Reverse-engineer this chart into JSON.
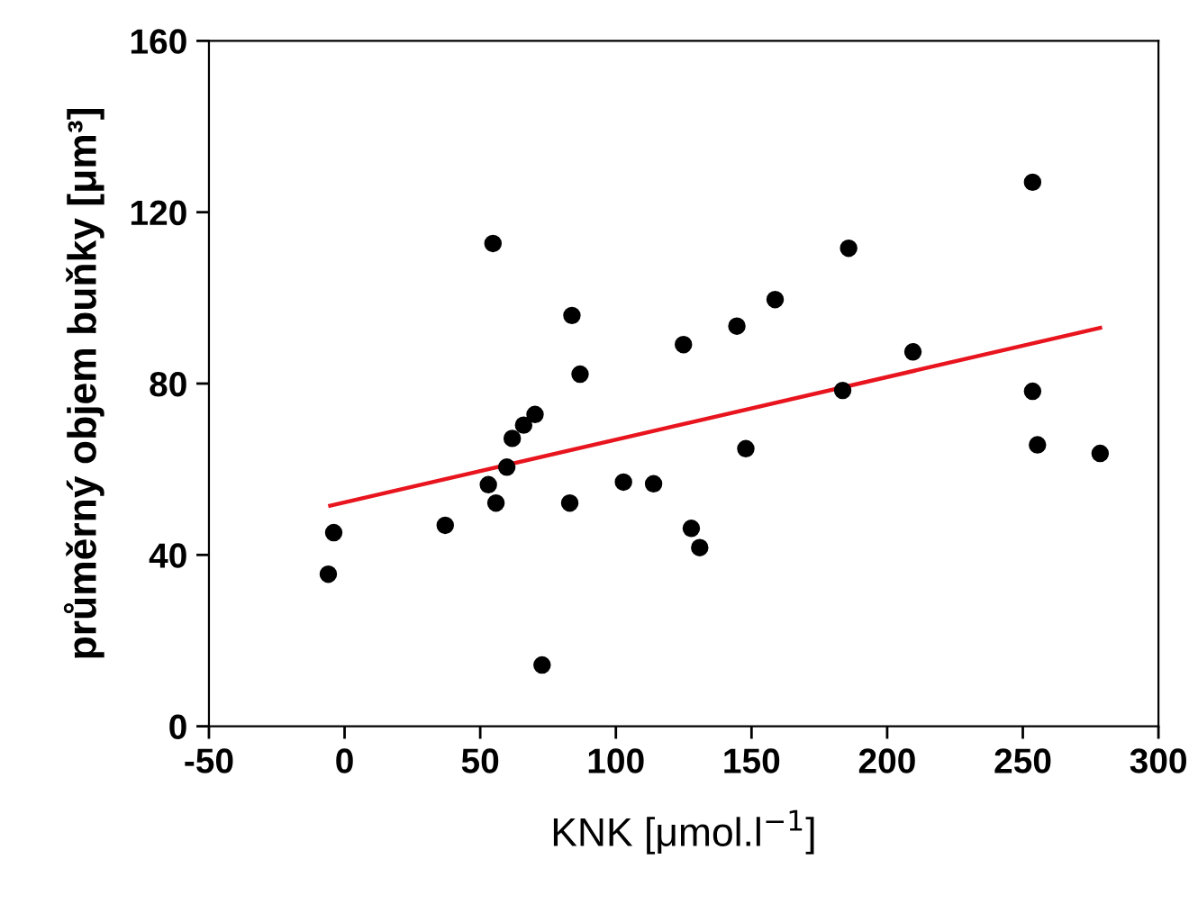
{
  "chart_data": {
    "type": "scatter",
    "xlabel": "KNK [μmol.l$^{−1}$]",
    "ylabel": "průměrný objem buňky [μm³]",
    "xlim": [
      -50,
      300
    ],
    "xticks": [
      -50,
      0,
      50,
      100,
      150,
      200,
      250,
      300
    ],
    "ylim": [
      0,
      160
    ],
    "yticks": [
      0,
      40,
      80,
      120,
      160
    ],
    "grid": false,
    "legend": false,
    "series": [
      {
        "color": "#000000",
        "marker": "circle",
        "x": [
          54.7,
          83.8,
          86.8,
          70.2,
          66,
          61.8,
          59.8,
          53,
          55.8,
          83,
          102.8,
          113.9,
          37.1,
          -4,
          -6,
          72.8,
          124.9,
          144.6,
          158.7,
          185.8,
          147.9,
          127.8,
          130.9,
          183.6,
          209.5,
          253.6,
          253.6,
          255.4,
          278.5
        ],
        "values": [
          112.7,
          95.9,
          82.2,
          72.8,
          70.3,
          67.2,
          60.5,
          56.4,
          52.1,
          52.1,
          57,
          56.6,
          46.9,
          45.2,
          35.5,
          14.3,
          89.1,
          93.4,
          99.6,
          111.6,
          64.8,
          46.2,
          41.7,
          78.4,
          87.4,
          127,
          78.2,
          65.7,
          63.7
        ]
      },
      {
        "type": "line",
        "color": "#e8141e",
        "marker": "none",
        "line_style": "solid",
        "x": [
          -5.3,
          278.5
        ],
        "values": [
          51.5,
          93
        ]
      }
    ]
  }
}
